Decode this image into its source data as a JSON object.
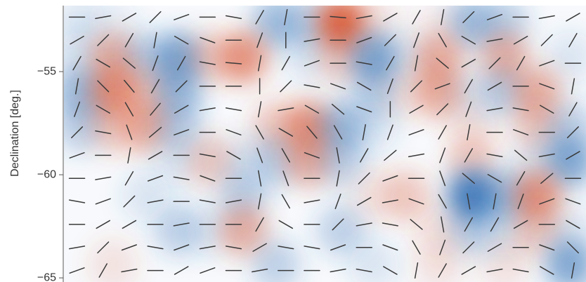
{
  "chart_data": {
    "type": "polarization_map",
    "ylabel": "Declination [deg.]",
    "ylim": [
      -51.8,
      -65.2
    ],
    "yticks": [
      {
        "value": -55,
        "label": "−55"
      },
      {
        "value": -60,
        "label": "−60"
      },
      {
        "value": -65,
        "label": "−65"
      }
    ],
    "colors": {
      "negative": "#2f6fb5",
      "positive": "#d8502a",
      "segment": "#3a3a3a"
    },
    "intensity": [
      [
        -0.5,
        -0.3,
        0,
        0,
        0,
        0,
        -1.5,
        -1,
        3,
        0.5,
        0,
        0.3,
        -1.5,
        -1,
        0,
        0
      ],
      [
        -0.5,
        1.5,
        -1,
        -2,
        1,
        2,
        0,
        -0.5,
        1,
        -2,
        -0.5,
        1.5,
        0,
        1.5,
        0,
        -0.5
      ],
      [
        -1.5,
        2,
        1,
        -1.5,
        0,
        0,
        0,
        0,
        0,
        -1,
        0.5,
        1.5,
        -0.5,
        -1,
        1.5,
        0
      ],
      [
        -1,
        1,
        1.5,
        -1,
        0,
        0,
        1,
        2,
        -1.5,
        -0.5,
        0,
        0,
        0.5,
        0,
        1,
        -1
      ],
      [
        0,
        0,
        0,
        -0.5,
        1,
        -0.5,
        -1,
        1.5,
        -1,
        0,
        0,
        0,
        1,
        0,
        -0.5,
        -2
      ],
      [
        0,
        0,
        -0.5,
        0,
        0,
        -1,
        0,
        0,
        0,
        0.5,
        1,
        0,
        -3,
        -1.5,
        2,
        0
      ],
      [
        0,
        0,
        0,
        -1,
        -0.5,
        1.5,
        0,
        0,
        -1,
        0,
        0,
        0.5,
        -1,
        -0.5,
        1,
        -0.5
      ],
      [
        0,
        0.5,
        0,
        0,
        0,
        0,
        -1,
        0,
        0,
        -0.5,
        0,
        0.5,
        0,
        0.5,
        0,
        -2
      ]
    ],
    "angles": [
      [
        0,
        10,
        30,
        45,
        20,
        0,
        -10,
        60,
        80,
        0,
        -5,
        10,
        30,
        60,
        80,
        45,
        20,
        0,
        10,
        30
      ],
      [
        30,
        45,
        60,
        80,
        -30,
        -20,
        0,
        70,
        90,
        10,
        0,
        20,
        45,
        70,
        -60,
        -30,
        10,
        30,
        45,
        60
      ],
      [
        60,
        -30,
        -40,
        70,
        60,
        -10,
        -5,
        80,
        60,
        20,
        0,
        -10,
        60,
        80,
        -40,
        30,
        45,
        60,
        20,
        0
      ],
      [
        80,
        -45,
        -50,
        60,
        45,
        0,
        0,
        90,
        45,
        -10,
        -20,
        -30,
        70,
        45,
        20,
        60,
        30,
        0,
        -20,
        80
      ],
      [
        70,
        -30,
        -60,
        50,
        30,
        10,
        -10,
        80,
        10,
        -30,
        -40,
        -20,
        90,
        30,
        45,
        70,
        10,
        -10,
        -30,
        60
      ],
      [
        45,
        -10,
        -70,
        40,
        20,
        0,
        -20,
        -60,
        -30,
        -50,
        -60,
        80,
        70,
        20,
        60,
        80,
        0,
        -20,
        0,
        45
      ],
      [
        20,
        0,
        80,
        30,
        0,
        -10,
        -30,
        -70,
        -60,
        -20,
        -80,
        60,
        40,
        10,
        70,
        60,
        -10,
        -40,
        10,
        30
      ],
      [
        0,
        10,
        60,
        20,
        -10,
        -20,
        0,
        -80,
        -70,
        0,
        80,
        45,
        20,
        0,
        -70,
        -40,
        -30,
        60,
        40,
        0
      ],
      [
        -10,
        20,
        45,
        10,
        0,
        -10,
        10,
        80,
        -60,
        10,
        70,
        30,
        10,
        -20,
        -60,
        -80,
        80,
        70,
        20,
        -20
      ],
      [
        0,
        30,
        30,
        0,
        10,
        0,
        0,
        60,
        -30,
        0,
        45,
        10,
        -10,
        -40,
        -80,
        60,
        60,
        30,
        0,
        -30
      ],
      [
        10,
        45,
        20,
        -10,
        20,
        10,
        -10,
        30,
        -10,
        -10,
        20,
        0,
        -20,
        -60,
        70,
        45,
        30,
        0,
        -20,
        -45
      ],
      [
        20,
        60,
        10,
        0,
        30,
        20,
        0,
        10,
        0,
        0,
        10,
        -10,
        -30,
        80,
        60,
        30,
        10,
        -10,
        -30,
        80
      ]
    ]
  }
}
